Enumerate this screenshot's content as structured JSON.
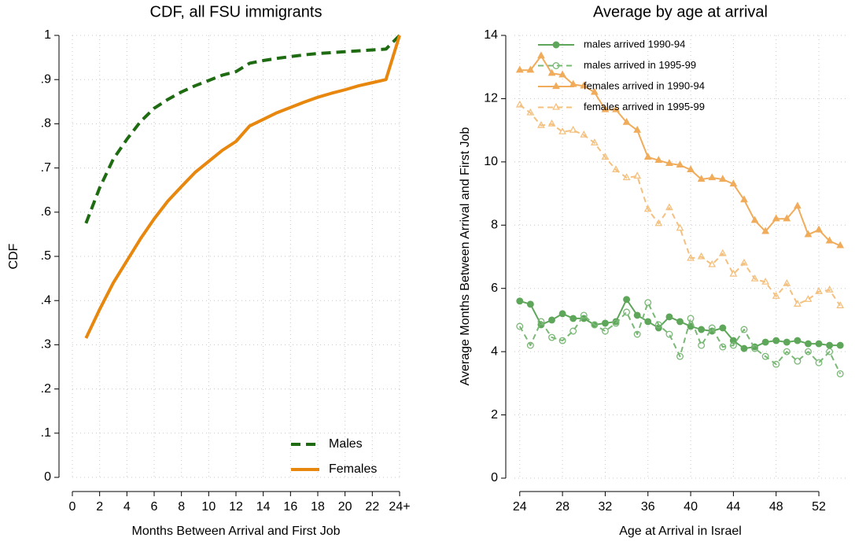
{
  "chart_data": [
    {
      "type": "line",
      "title": "CDF, all FSU immigrants",
      "x_label": "Months Between Arrival and First Job",
      "y_label": "CDF",
      "x": [
        1,
        2,
        3,
        4,
        5,
        6,
        7,
        8,
        9,
        10,
        11,
        12,
        13,
        14,
        15,
        16,
        17,
        18,
        19,
        20,
        21,
        22,
        23,
        24
      ],
      "series": [
        {
          "name": "Males",
          "color": "#1e6b12",
          "dashed": true,
          "marker": "none",
          "filled": true,
          "width": 4,
          "values": [
            0.575,
            0.655,
            0.72,
            0.765,
            0.805,
            0.835,
            0.855,
            0.872,
            0.886,
            0.898,
            0.91,
            0.918,
            0.937,
            0.943,
            0.948,
            0.952,
            0.956,
            0.959,
            0.961,
            0.963,
            0.965,
            0.967,
            0.969,
            1.0
          ]
        },
        {
          "name": "Females",
          "color": "#e8870e",
          "dashed": false,
          "marker": "none",
          "filled": true,
          "width": 4,
          "values": [
            0.315,
            0.38,
            0.44,
            0.49,
            0.54,
            0.585,
            0.625,
            0.658,
            0.69,
            0.715,
            0.74,
            0.76,
            0.795,
            0.81,
            0.825,
            0.837,
            0.849,
            0.86,
            0.869,
            0.877,
            0.886,
            0.893,
            0.9,
            1.0
          ]
        }
      ],
      "xlim": [
        0,
        24
      ],
      "xticks": [
        0,
        2,
        4,
        6,
        8,
        10,
        12,
        14,
        16,
        18,
        20,
        22,
        {
          "value": 24,
          "label": "24+"
        }
      ],
      "ylim": [
        0,
        1
      ],
      "yticks": [
        0,
        {
          "value": 0.1,
          "label": ".1"
        },
        {
          "value": 0.2,
          "label": ".2"
        },
        {
          "value": 0.3,
          "label": ".3"
        },
        {
          "value": 0.4,
          "label": ".4"
        },
        {
          "value": 0.5,
          "label": ".5"
        },
        {
          "value": 0.6,
          "label": ".6"
        },
        {
          "value": 0.7,
          "label": ".7"
        },
        {
          "value": 0.8,
          "label": ".8"
        },
        {
          "value": 0.9,
          "label": ".9"
        },
        1
      ],
      "grid": true,
      "legend": "lower right"
    },
    {
      "type": "line",
      "title": "Average by age at arrival",
      "x_label": "Age at Arrival in Israel",
      "y_label": "Average Months Between Arrival and First Job",
      "x": [
        24,
        25,
        26,
        27,
        28,
        29,
        30,
        31,
        32,
        33,
        34,
        35,
        36,
        37,
        38,
        39,
        40,
        41,
        42,
        43,
        44,
        45,
        46,
        47,
        48,
        49,
        50,
        51,
        52,
        53,
        54
      ],
      "series": [
        {
          "name": "males arrived 1990-94",
          "color": "#5ea65a",
          "dashed": false,
          "marker": "circle",
          "filled": true,
          "width": 2,
          "values": [
            5.6,
            5.5,
            4.85,
            5.0,
            5.2,
            5.05,
            5.05,
            4.85,
            4.9,
            4.95,
            5.65,
            5.15,
            4.95,
            4.75,
            5.1,
            4.95,
            4.8,
            4.7,
            4.65,
            4.75,
            4.35,
            4.1,
            4.15,
            4.3,
            4.35,
            4.3,
            4.35,
            4.25,
            4.25,
            4.2,
            4.2
          ]
        },
        {
          "name": "males arrived in 1995-99",
          "color": "#7ab876",
          "dashed": true,
          "marker": "circle",
          "filled": false,
          "width": 2,
          "values": [
            4.8,
            4.2,
            4.95,
            4.45,
            4.35,
            4.65,
            5.15,
            4.85,
            4.65,
            4.9,
            5.25,
            4.55,
            5.55,
            4.85,
            4.55,
            3.85,
            5.05,
            4.2,
            4.75,
            4.15,
            4.2,
            4.7,
            4.1,
            3.85,
            3.6,
            4.0,
            3.7,
            4.0,
            3.65,
            4.0,
            3.3
          ]
        },
        {
          "name": "females arrived in 1990-94",
          "color": "#f0ac5a",
          "dashed": false,
          "marker": "triangle",
          "filled": true,
          "width": 2,
          "values": [
            12.9,
            12.9,
            13.35,
            12.8,
            12.75,
            12.45,
            12.4,
            12.2,
            11.65,
            11.65,
            11.25,
            11.0,
            10.15,
            10.05,
            9.95,
            9.9,
            9.75,
            9.45,
            9.5,
            9.45,
            9.3,
            8.8,
            8.15,
            7.8,
            8.2,
            8.2,
            8.6,
            7.7,
            7.85,
            7.5,
            7.35
          ]
        },
        {
          "name": "females arrived in 1995-99",
          "color": "#f4c07e",
          "dashed": true,
          "marker": "triangle",
          "filled": false,
          "width": 2,
          "values": [
            11.8,
            11.55,
            11.15,
            11.2,
            10.95,
            11.0,
            10.85,
            10.6,
            10.15,
            9.75,
            9.5,
            9.55,
            8.5,
            8.05,
            8.55,
            7.9,
            6.95,
            7.0,
            6.75,
            7.1,
            6.45,
            6.8,
            6.3,
            6.2,
            5.75,
            6.15,
            5.5,
            5.65,
            5.9,
            5.95,
            5.45
          ]
        }
      ],
      "xlim": [
        23.5,
        54.5
      ],
      "xticks": [
        24,
        28,
        32,
        36,
        40,
        44,
        48,
        52
      ],
      "ylim": [
        0,
        14
      ],
      "yticks": [
        0,
        2,
        4,
        6,
        8,
        10,
        12,
        14
      ],
      "grid": true,
      "legend": "upper right"
    }
  ]
}
